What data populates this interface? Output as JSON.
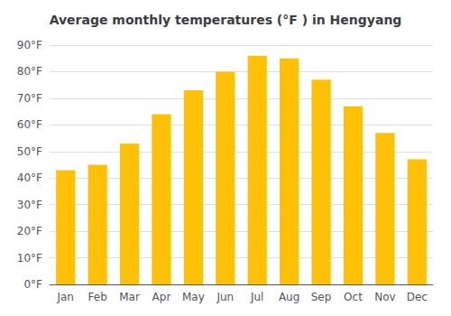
{
  "chart_data": {
    "type": "bar",
    "title": "Average monthly temperatures (°F ) in Hengyang",
    "categories": [
      "Jan",
      "Feb",
      "Mar",
      "Apr",
      "May",
      "Jun",
      "Jul",
      "Aug",
      "Sep",
      "Oct",
      "Nov",
      "Dec"
    ],
    "values": [
      43,
      45,
      53,
      64,
      73,
      80,
      86,
      85,
      77,
      67,
      57,
      47
    ],
    "color": "#FFC107",
    "ylim": [
      0,
      90
    ],
    "yticks": [
      {
        "value": 0,
        "label": "0°F"
      },
      {
        "value": 10,
        "label": "10°F"
      },
      {
        "value": 20,
        "label": "20°F"
      },
      {
        "value": 30,
        "label": "30°F"
      },
      {
        "value": 40,
        "label": "40°F"
      },
      {
        "value": 50,
        "label": "50°F"
      },
      {
        "value": 60,
        "label": "60°F"
      },
      {
        "value": 70,
        "label": "70°F"
      },
      {
        "value": 80,
        "label": "80°F"
      },
      {
        "value": 90,
        "label": "90°F"
      }
    ],
    "grid": true
  }
}
